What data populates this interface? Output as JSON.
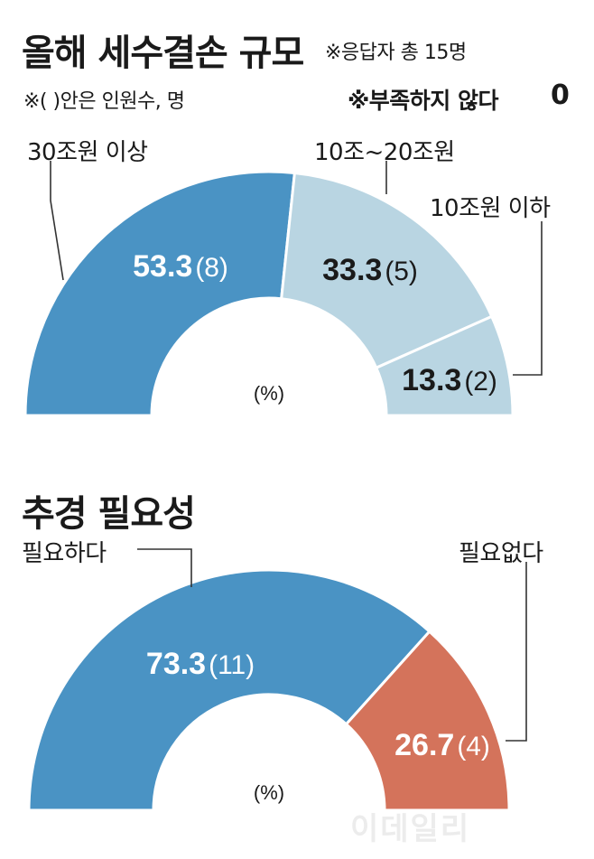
{
  "chart_data": [
    {
      "type": "pie",
      "style": "semi-donut",
      "title": "올해 세수결손 규모",
      "note_respondents": "※응답자 총 15명",
      "note_parentheses": "※( )안은 인원수, 명",
      "note_zero_label": "※부족하지 않다",
      "note_zero_value": "0",
      "unit": "(%)",
      "slices": [
        {
          "category": "30조원 이상",
          "value": 53.3,
          "value_label": "53.3",
          "count_label": "(8)",
          "count": 8,
          "color": "#4a93c4",
          "label_color": "#ffffff"
        },
        {
          "category": "10조~20조원",
          "value": 33.3,
          "value_label": "33.3",
          "count_label": "(5)",
          "count": 5,
          "color": "#b9d5e2",
          "label_color": "#1a1a1a"
        },
        {
          "category": "10조원 이하",
          "value": 13.3,
          "value_label": "13.3",
          "count_label": "(2)",
          "count": 2,
          "color": "#b9d5e2",
          "label_color": "#1a1a1a"
        }
      ]
    },
    {
      "type": "pie",
      "style": "semi-donut",
      "title": "추경 필요성",
      "unit": "(%)",
      "slices": [
        {
          "category": "필요하다",
          "value": 73.3,
          "value_label": "73.3",
          "count_label": "(11)",
          "count": 11,
          "color": "#4a93c4",
          "label_color": "#ffffff"
        },
        {
          "category": "필요없다",
          "value": 26.7,
          "value_label": "26.7",
          "count_label": "(4)",
          "count": 4,
          "color": "#d4735b",
          "label_color": "#ffffff"
        }
      ]
    }
  ],
  "watermark": "이데일리"
}
